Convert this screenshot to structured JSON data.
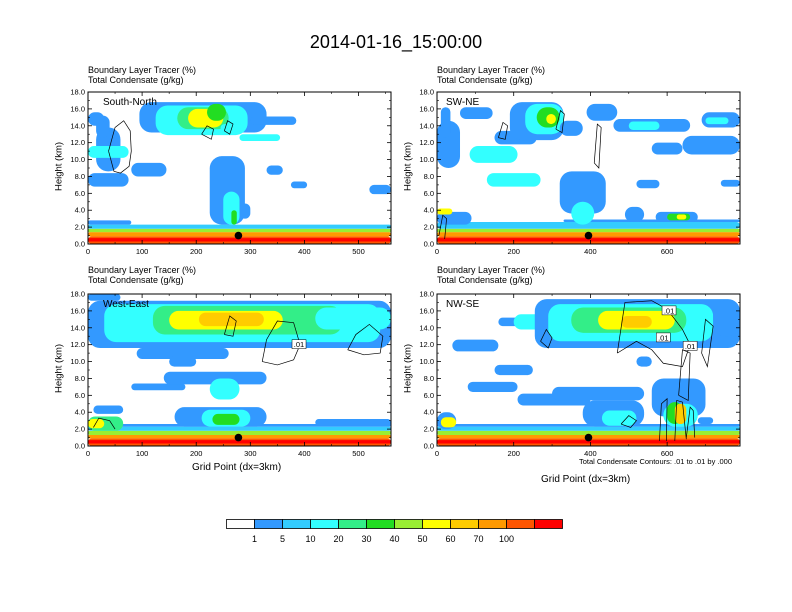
{
  "title": "2014-01-16_15:00:00",
  "chart_data": [
    {
      "type": "heatmap",
      "region": "South-North",
      "labels": [
        "Boundary Layer Tracer   (%)",
        "Total Condensate   (g/kg)"
      ],
      "ylabel": "Height (km)",
      "xlabel": "",
      "xlim": [
        0,
        560
      ],
      "ylim": [
        0,
        18
      ],
      "xticks": [
        0,
        100,
        200,
        300,
        400,
        500
      ],
      "yticks": [
        0.0,
        2.0,
        4.0,
        6.0,
        8.0,
        10.0,
        12.0,
        14.0,
        16.0,
        18.0
      ],
      "marker": {
        "x": 278,
        "y": 1.0
      },
      "contour_labels": []
    },
    {
      "type": "heatmap",
      "region": "SW-NE",
      "labels": [
        "Boundary Layer Tracer   (%)",
        "Total Condensate   (g/kg)"
      ],
      "ylabel": "Height (km)",
      "xlabel": "",
      "xlim": [
        0,
        790
      ],
      "ylim": [
        0,
        18
      ],
      "xticks": [
        0,
        200,
        400,
        600
      ],
      "yticks": [
        0.0,
        2.0,
        4.0,
        6.0,
        8.0,
        10.0,
        12.0,
        14.0,
        16.0,
        18.0
      ],
      "marker": {
        "x": 395,
        "y": 1.0
      },
      "contour_labels": []
    },
    {
      "type": "heatmap",
      "region": "West-East",
      "labels": [
        "Boundary Layer Tracer   (%)",
        "Total Condensate   (g/kg)"
      ],
      "ylabel": "Height (km)",
      "xlabel": "Grid Point (dx=3km)",
      "xlim": [
        0,
        560
      ],
      "ylim": [
        0,
        18
      ],
      "xticks": [
        0,
        100,
        200,
        300,
        400,
        500
      ],
      "yticks": [
        0.0,
        2.0,
        4.0,
        6.0,
        8.0,
        10.0,
        12.0,
        14.0,
        16.0,
        18.0
      ],
      "marker": {
        "x": 278,
        "y": 1.0
      },
      "contour_labels": [
        ".01"
      ]
    },
    {
      "type": "heatmap",
      "region": "NW-SE",
      "labels": [
        "Boundary Layer Tracer   (%)",
        "Total Condensate   (g/kg)"
      ],
      "ylabel": "Height (km)",
      "xlabel": "Grid Point (dx=3km)",
      "xlim": [
        0,
        790
      ],
      "ylim": [
        0,
        18
      ],
      "xticks": [
        0,
        200,
        400,
        600
      ],
      "yticks": [
        0.0,
        2.0,
        4.0,
        6.0,
        8.0,
        10.0,
        12.0,
        14.0,
        16.0,
        18.0
      ],
      "marker": {
        "x": 395,
        "y": 1.0
      },
      "contour_labels": [
        ".01",
        ".01",
        ".01"
      ],
      "note": "Total Condensate Contours: .01 to .01 by .000"
    }
  ],
  "colorbar": {
    "levels": [
      "1",
      "5",
      "10",
      "20",
      "30",
      "40",
      "50",
      "60",
      "70",
      "100"
    ],
    "colors": [
      "#ffffff",
      "#3399ff",
      "#33ccff",
      "#33ffff",
      "#33ee88",
      "#22dd22",
      "#99ee33",
      "#ffff00",
      "#ffcc00",
      "#ff9900",
      "#ff5500",
      "#ff0000"
    ]
  }
}
